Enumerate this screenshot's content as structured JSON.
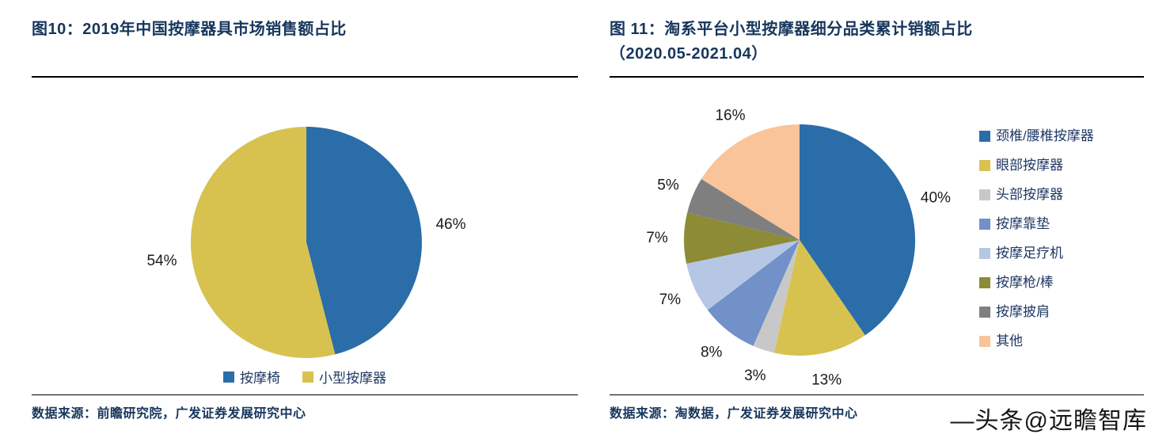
{
  "left_panel": {
    "title": "图10：2019年中国按摩器具市场销售额占比",
    "source": "数据来源：前瞻研究院，广发证券发展研究中心"
  },
  "right_panel": {
    "title_line1": "图 11：淘系平台小型按摩器细分品类累计销额占比",
    "title_line2": "（2020.05-2021.04）",
    "source": "数据来源：淘数据，广发证券发展研究中心"
  },
  "watermark": "—头条@远瞻智库",
  "colors": {
    "title_navy": "#17365D",
    "legend_text": "#1F3864",
    "rule_black": "#000000"
  },
  "chart_data": [
    {
      "type": "pie",
      "title": "2019年中国按摩器具市场销售额占比",
      "labels": [
        "按摩椅",
        "小型按摩器"
      ],
      "values": [
        46,
        54
      ],
      "unit": "%",
      "colors": [
        "#2B6DA8",
        "#D7C250"
      ],
      "legend_position": "bottom",
      "start_angle_deg": 0,
      "direction": "clockwise"
    },
    {
      "type": "pie",
      "title": "淘系平台小型按摩器细分品类累计销额占比（2020.05-2021.04）",
      "labels": [
        "颈椎/腰椎按摩器",
        "眼部按摩器",
        "头部按摩器",
        "按摩靠垫",
        "按摩足疗机",
        "按摩枪/棒",
        "按摩披肩",
        "其他"
      ],
      "values": [
        40,
        13,
        3,
        8,
        7,
        7,
        5,
        16
      ],
      "unit": "%",
      "colors": [
        "#2B6DA8",
        "#D7C250",
        "#C8C8C8",
        "#7191C8",
        "#B5C7E5",
        "#8D8B35",
        "#7F7F7F",
        "#F9C499"
      ],
      "legend_position": "right",
      "start_angle_deg": 0,
      "direction": "clockwise"
    }
  ]
}
